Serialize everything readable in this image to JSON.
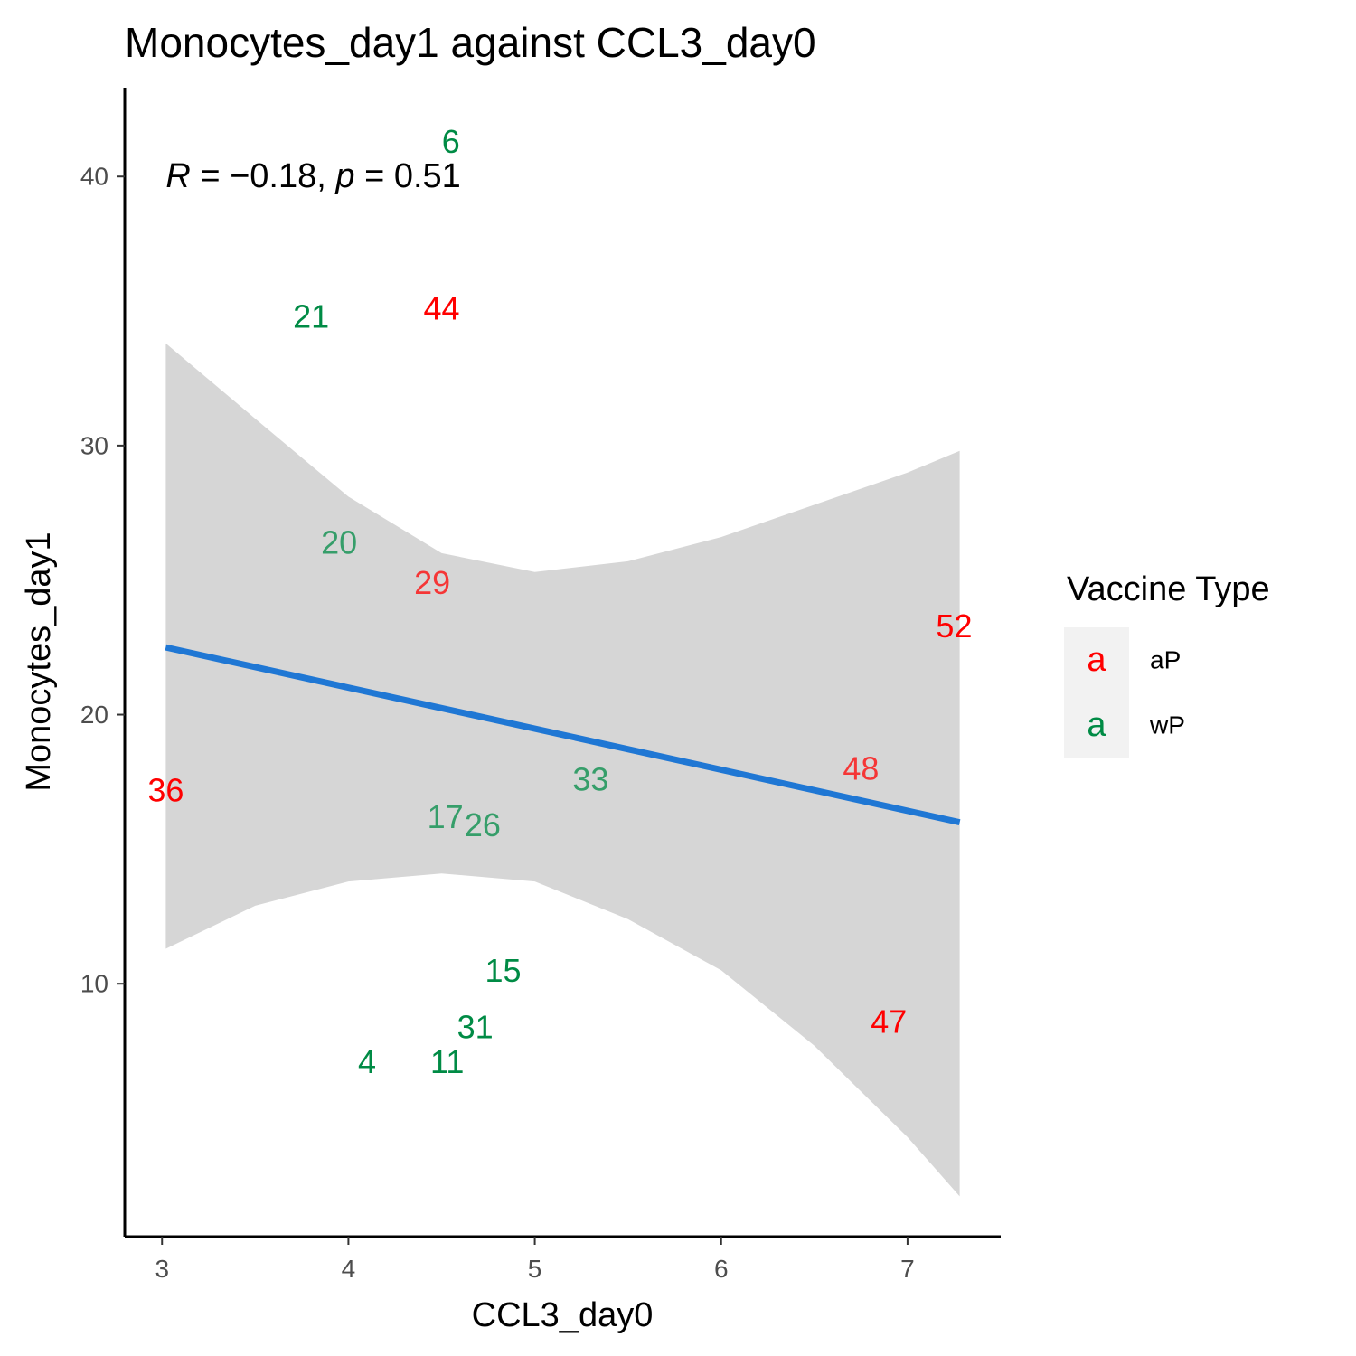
{
  "chart_data": {
    "type": "scatter",
    "title": "Monocytes_day1 against CCL3_day0",
    "xlabel": "CCL3_day0",
    "ylabel": "Monocytes_day1",
    "xlim": [
      2.8,
      7.5
    ],
    "ylim": [
      0.6,
      43.3
    ],
    "x_ticks": [
      3,
      4,
      5,
      6,
      7
    ],
    "y_ticks": [
      10,
      20,
      30,
      40
    ],
    "grid": false,
    "colors": {
      "aP": "#ff0000",
      "wP": "#008b45",
      "regression_line": "#1f77d4",
      "confidence_band": "#d6d6d6",
      "legend_key_background": "#f2f2f2"
    },
    "points": [
      {
        "label": "6",
        "group": "wP",
        "x": 4.55,
        "y": 41.3
      },
      {
        "label": "21",
        "group": "wP",
        "x": 3.8,
        "y": 34.8
      },
      {
        "label": "44",
        "group": "aP",
        "x": 4.5,
        "y": 35.1
      },
      {
        "label": "20",
        "group": "wP",
        "x": 3.95,
        "y": 26.4
      },
      {
        "label": "29",
        "group": "aP",
        "x": 4.45,
        "y": 24.9
      },
      {
        "label": "52",
        "group": "aP",
        "x": 7.25,
        "y": 23.3
      },
      {
        "label": "48",
        "group": "aP",
        "x": 6.75,
        "y": 18.0
      },
      {
        "label": "33",
        "group": "wP",
        "x": 5.3,
        "y": 17.6
      },
      {
        "label": "36",
        "group": "aP",
        "x": 3.02,
        "y": 17.2
      },
      {
        "label": "17",
        "group": "wP",
        "x": 4.52,
        "y": 16.2
      },
      {
        "label": "26",
        "group": "wP",
        "x": 4.72,
        "y": 15.9
      },
      {
        "label": "15",
        "group": "wP",
        "x": 4.83,
        "y": 10.5
      },
      {
        "label": "31",
        "group": "wP",
        "x": 4.68,
        "y": 8.4
      },
      {
        "label": "47",
        "group": "aP",
        "x": 6.9,
        "y": 8.6
      },
      {
        "label": "4",
        "group": "wP",
        "x": 4.1,
        "y": 7.1
      },
      {
        "label": "11",
        "group": "wP",
        "x": 4.53,
        "y": 7.1
      }
    ],
    "regression": {
      "x": [
        3.02,
        7.28
      ],
      "y": [
        22.5,
        16.0
      ]
    },
    "confidence_band": {
      "x": [
        3.02,
        3.5,
        4.0,
        4.5,
        5.0,
        5.5,
        6.0,
        6.5,
        7.0,
        7.28
      ],
      "upper": [
        33.8,
        31.0,
        28.1,
        26.0,
        25.3,
        25.7,
        26.6,
        27.8,
        29.0,
        29.8
      ],
      "lower": [
        11.3,
        12.9,
        13.8,
        14.1,
        13.8,
        12.4,
        10.5,
        7.7,
        4.3,
        2.1
      ]
    },
    "annotation": {
      "r_symbol": "R",
      "r_text": " = −0.18, ",
      "p_symbol": "p",
      "p_text": " = 0.51",
      "x": 3.02,
      "y": 40
    },
    "legend": {
      "title": "Vaccine Type",
      "key_glyph": "a",
      "entries": [
        {
          "label": "aP",
          "color": "#ff0000"
        },
        {
          "label": "wP",
          "color": "#008b45"
        }
      ]
    }
  }
}
